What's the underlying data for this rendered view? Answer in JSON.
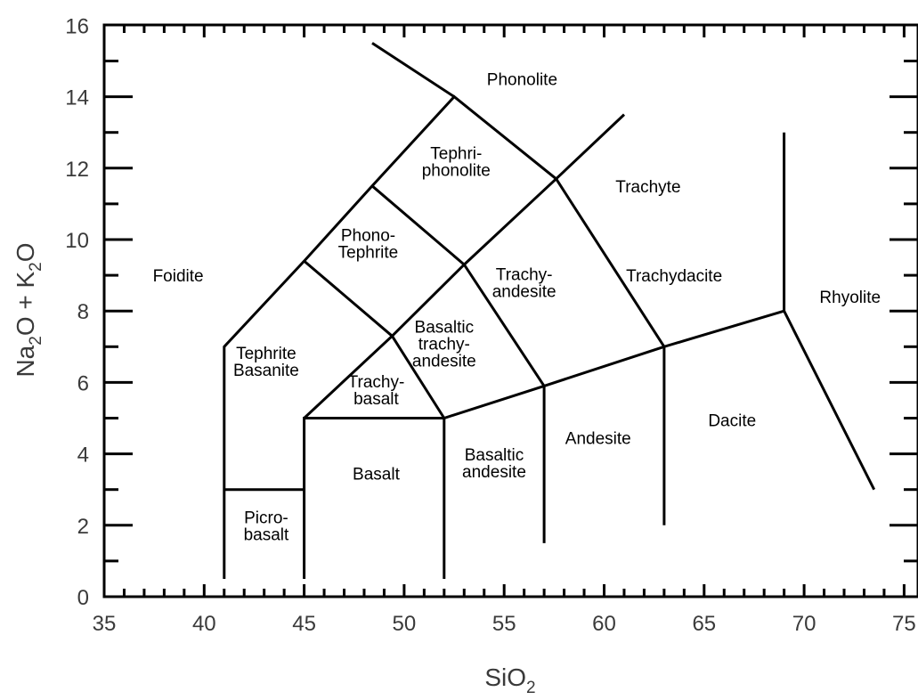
{
  "chart_data": {
    "type": "classification_diagram",
    "xlabel": "SiO2",
    "ylabel": "Na2O + K2O",
    "xlim": [
      35,
      76
    ],
    "ylim": [
      0,
      16
    ],
    "x_ticks": [
      "35",
      "40",
      "45",
      "50",
      "55",
      "60",
      "65",
      "70",
      "75"
    ],
    "y_ticks": [
      "0",
      "2",
      "4",
      "6",
      "8",
      "10",
      "12",
      "14",
      "16"
    ],
    "boundaries": [
      [
        [
          41,
          0.5
        ],
        [
          41,
          7
        ],
        [
          45,
          9.4
        ],
        [
          48.4,
          11.5
        ],
        [
          52.5,
          14
        ],
        [
          57.6,
          11.7
        ],
        [
          63,
          7
        ],
        [
          69,
          8
        ]
      ],
      [
        [
          41,
          3
        ],
        [
          45,
          3
        ]
      ],
      [
        [
          45,
          0.5
        ],
        [
          45,
          5
        ],
        [
          52,
          5
        ],
        [
          57,
          5.9
        ],
        [
          63,
          7
        ]
      ],
      [
        [
          45,
          5
        ],
        [
          49.4,
          7.3
        ],
        [
          53,
          9.3
        ],
        [
          57.6,
          11.7
        ]
      ],
      [
        [
          45,
          9.4
        ],
        [
          49.4,
          7.3
        ],
        [
          52,
          5
        ]
      ],
      [
        [
          48.4,
          11.5
        ],
        [
          53,
          9.3
        ],
        [
          57,
          5.9
        ]
      ],
      [
        [
          52,
          0.5
        ],
        [
          52,
          5
        ]
      ],
      [
        [
          57,
          1.5
        ],
        [
          57,
          5.9
        ]
      ],
      [
        [
          63,
          2
        ],
        [
          63,
          7
        ]
      ],
      [
        [
          69,
          13
        ],
        [
          69,
          8
        ],
        [
          73.5,
          3
        ]
      ],
      [
        [
          52.5,
          14
        ],
        [
          48.4,
          15.5
        ]
      ],
      [
        [
          57.6,
          11.7
        ],
        [
          61,
          13.5
        ]
      ]
    ],
    "fields": [
      {
        "name": "Foidite",
        "lines": [
          "Foidite"
        ],
        "x": 38.7,
        "y": 9
      },
      {
        "name": "Phonolite",
        "lines": [
          "Phonolite"
        ],
        "x": 55.9,
        "y": 14.5
      },
      {
        "name": "Tephriphonolite",
        "lines": [
          "Tephri-",
          "phonolite"
        ],
        "x": 52.6,
        "y": 12.2
      },
      {
        "name": "Phonotephrite",
        "lines": [
          "Phono-",
          "Tephrite"
        ],
        "x": 48.2,
        "y": 9.9
      },
      {
        "name": "Trachyte",
        "lines": [
          "Trachyte"
        ],
        "x": 62.2,
        "y": 11.5
      },
      {
        "name": "Trachyandesite",
        "lines": [
          "Trachy-",
          "andesite"
        ],
        "x": 56,
        "y": 8.8
      },
      {
        "name": "Trachydacite",
        "lines": [
          "Trachydacite"
        ],
        "x": 63.5,
        "y": 9
      },
      {
        "name": "Rhyolite",
        "lines": [
          "Rhyolite"
        ],
        "x": 72.3,
        "y": 8.4
      },
      {
        "name": "Tephrite Basanite",
        "lines": [
          "Tephrite",
          "Basanite"
        ],
        "x": 43.1,
        "y": 6.6
      },
      {
        "name": "Basaltic trachyandesite",
        "lines": [
          "Basaltic",
          "trachy-",
          "andesite"
        ],
        "x": 52,
        "y": 7.1
      },
      {
        "name": "Trachybasalt",
        "lines": [
          "Trachy-",
          "basalt"
        ],
        "x": 48.6,
        "y": 5.8
      },
      {
        "name": "Picrobasalt",
        "lines": [
          "Picro-",
          "basalt"
        ],
        "x": 43.1,
        "y": 2
      },
      {
        "name": "Basalt",
        "lines": [
          "Basalt"
        ],
        "x": 48.6,
        "y": 3.45
      },
      {
        "name": "Basaltic andesite",
        "lines": [
          "Basaltic",
          "andesite"
        ],
        "x": 54.5,
        "y": 3.75
      },
      {
        "name": "Andesite",
        "lines": [
          "Andesite"
        ],
        "x": 59.7,
        "y": 4.45
      },
      {
        "name": "Dacite",
        "lines": [
          "Dacite"
        ],
        "x": 66.4,
        "y": 4.95
      }
    ]
  }
}
